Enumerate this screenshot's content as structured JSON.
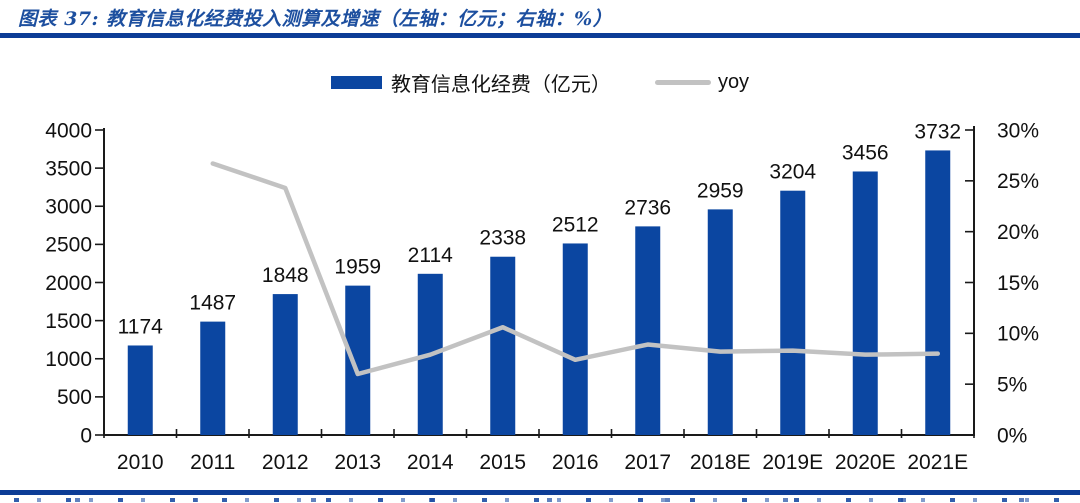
{
  "figure": {
    "title": "图表 37: 教育信息化经费投入测算及增速（左轴：亿元；右轴：%）"
  },
  "colors": {
    "bar": "#0b46a1",
    "line": "#c2c2c2",
    "title": "#1d4f9f",
    "accent_rule": "#0c3c96",
    "axis": "#1a1a1a",
    "label_text": "#111111"
  },
  "chart_data": {
    "type": "bar",
    "title": "教育信息化经费投入测算及增速",
    "categories": [
      "2010",
      "2011",
      "2012",
      "2013",
      "2014",
      "2015",
      "2016",
      "2017",
      "2018E",
      "2019E",
      "2020E",
      "2021E"
    ],
    "series": [
      {
        "name": "教育信息化经费（亿元）",
        "type": "bar",
        "axis": "left",
        "values": [
          1174,
          1487,
          1848,
          1959,
          2114,
          2338,
          2512,
          2736,
          2959,
          3204,
          3456,
          3732
        ]
      },
      {
        "name": "yoy",
        "type": "line",
        "axis": "right",
        "values": [
          null,
          26.7,
          24.3,
          6.0,
          7.9,
          10.6,
          7.4,
          8.9,
          8.2,
          8.3,
          7.9,
          8.0
        ]
      }
    ],
    "left_axis": {
      "min": 0,
      "max": 4000,
      "step": 500,
      "suffix": ""
    },
    "right_axis": {
      "min": 0,
      "max": 30,
      "step": 5,
      "suffix": "%"
    },
    "legend_position": "top",
    "grid": false,
    "bar_labels": true
  }
}
